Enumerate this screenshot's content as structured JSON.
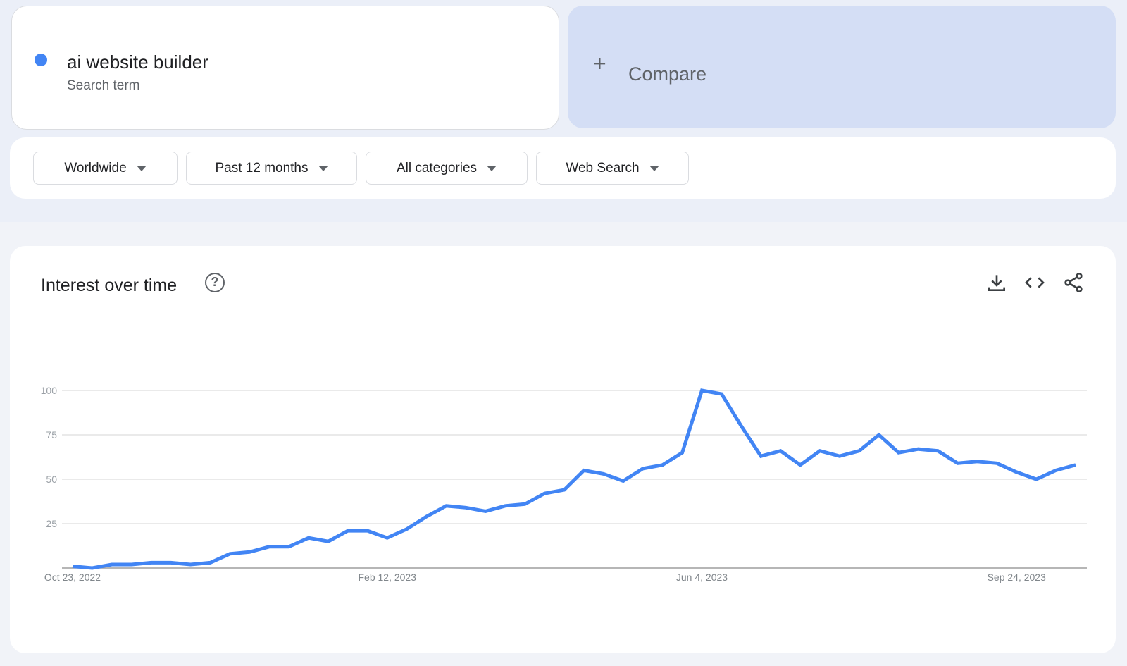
{
  "search_term": {
    "label": "ai website builder",
    "sublabel": "Search term",
    "color": "#4285f4"
  },
  "compare": {
    "label": "Compare",
    "icon": "plus-icon"
  },
  "filters": [
    {
      "label": "Worldwide"
    },
    {
      "label": "Past 12 months"
    },
    {
      "label": "All categories"
    },
    {
      "label": "Web Search"
    }
  ],
  "panel": {
    "title": "Interest over time",
    "icons": [
      "help-icon",
      "download-icon",
      "embed-code-icon",
      "share-icon"
    ]
  },
  "chart_data": {
    "type": "line",
    "title": "Interest over time",
    "x": [
      "Oct 23, 2022",
      "Oct 30, 2022",
      "Nov 6, 2022",
      "Nov 13, 2022",
      "Nov 20, 2022",
      "Nov 27, 2022",
      "Dec 4, 2022",
      "Dec 11, 2022",
      "Dec 18, 2022",
      "Dec 25, 2022",
      "Jan 1, 2023",
      "Jan 8, 2023",
      "Jan 15, 2023",
      "Jan 22, 2023",
      "Jan 29, 2023",
      "Feb 5, 2023",
      "Feb 12, 2023",
      "Feb 19, 2023",
      "Feb 26, 2023",
      "Mar 5, 2023",
      "Mar 12, 2023",
      "Mar 19, 2023",
      "Mar 26, 2023",
      "Apr 2, 2023",
      "Apr 9, 2023",
      "Apr 16, 2023",
      "Apr 23, 2023",
      "Apr 30, 2023",
      "May 7, 2023",
      "May 14, 2023",
      "May 21, 2023",
      "May 28, 2023",
      "Jun 4, 2023",
      "Jun 11, 2023",
      "Jun 18, 2023",
      "Jun 25, 2023",
      "Jul 2, 2023",
      "Jul 9, 2023",
      "Jul 16, 2023",
      "Jul 23, 2023",
      "Jul 30, 2023",
      "Aug 6, 2023",
      "Aug 13, 2023",
      "Aug 20, 2023",
      "Aug 27, 2023",
      "Sep 3, 2023",
      "Sep 10, 2023",
      "Sep 17, 2023",
      "Sep 24, 2023",
      "Oct 1, 2023",
      "Oct 8, 2023",
      "Oct 15, 2023"
    ],
    "series": [
      {
        "name": "ai website builder",
        "color": "#4285f4",
        "values": [
          1,
          0,
          2,
          2,
          3,
          3,
          2,
          3,
          8,
          9,
          12,
          12,
          17,
          15,
          21,
          21,
          17,
          22,
          29,
          35,
          34,
          32,
          35,
          36,
          42,
          44,
          55,
          53,
          49,
          56,
          58,
          65,
          100,
          98,
          80,
          63,
          66,
          58,
          66,
          63,
          66,
          75,
          65,
          67,
          66,
          59,
          60,
          59,
          54,
          50,
          55,
          58
        ]
      }
    ],
    "x_tick_labels": [
      "Oct 23, 2022",
      "Feb 12, 2023",
      "Jun 4, 2023",
      "Sep 24, 2023"
    ],
    "y_ticks": [
      25,
      50,
      75,
      100
    ],
    "ylim": [
      0,
      100
    ],
    "grid": true,
    "legend": "none"
  }
}
